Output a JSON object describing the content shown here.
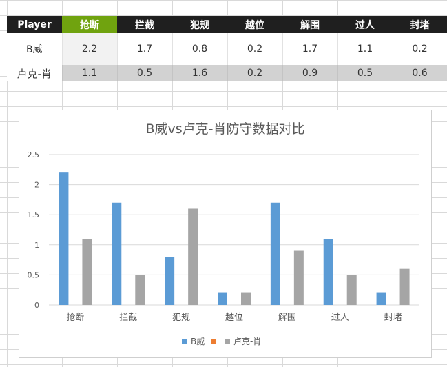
{
  "table": {
    "headers": [
      "Player",
      "抢断",
      "拦截",
      "犯规",
      "越位",
      "解围",
      "过人",
      "封堵"
    ],
    "rows": [
      {
        "name": "B威",
        "values": [
          "2.2",
          "1.7",
          "0.8",
          "0.2",
          "1.7",
          "1.1",
          "0.2"
        ]
      },
      {
        "name": "卢克-肖",
        "values": [
          "1.1",
          "0.5",
          "1.6",
          "0.2",
          "0.9",
          "0.5",
          "0.6"
        ]
      }
    ]
  },
  "colors": {
    "header_bg": "#1f1f1f",
    "selected_header_bg": "#70a30f",
    "series_1": "#5b9bd5",
    "series_legend_extra": "#ed7d31",
    "series_2": "#a5a5a5"
  },
  "chart_data": {
    "type": "bar",
    "title": "B威vs卢克-肖防守数据对比",
    "categories": [
      "抢断",
      "拦截",
      "犯规",
      "越位",
      "解围",
      "过人",
      "封堵"
    ],
    "series": [
      {
        "name": "B威",
        "values": [
          2.2,
          1.7,
          0.8,
          0.2,
          1.7,
          1.1,
          0.2
        ]
      },
      {
        "name": "卢克-肖",
        "values": [
          1.1,
          0.5,
          1.6,
          0.2,
          0.9,
          0.5,
          0.6
        ]
      }
    ],
    "legend": [
      "B威",
      "",
      "卢克-肖"
    ],
    "yticks": [
      "0",
      "0.5",
      "1",
      "1.5",
      "2",
      "2.5"
    ],
    "ylim": [
      0,
      2.5
    ],
    "grid": true,
    "legend_position": "bottom"
  }
}
